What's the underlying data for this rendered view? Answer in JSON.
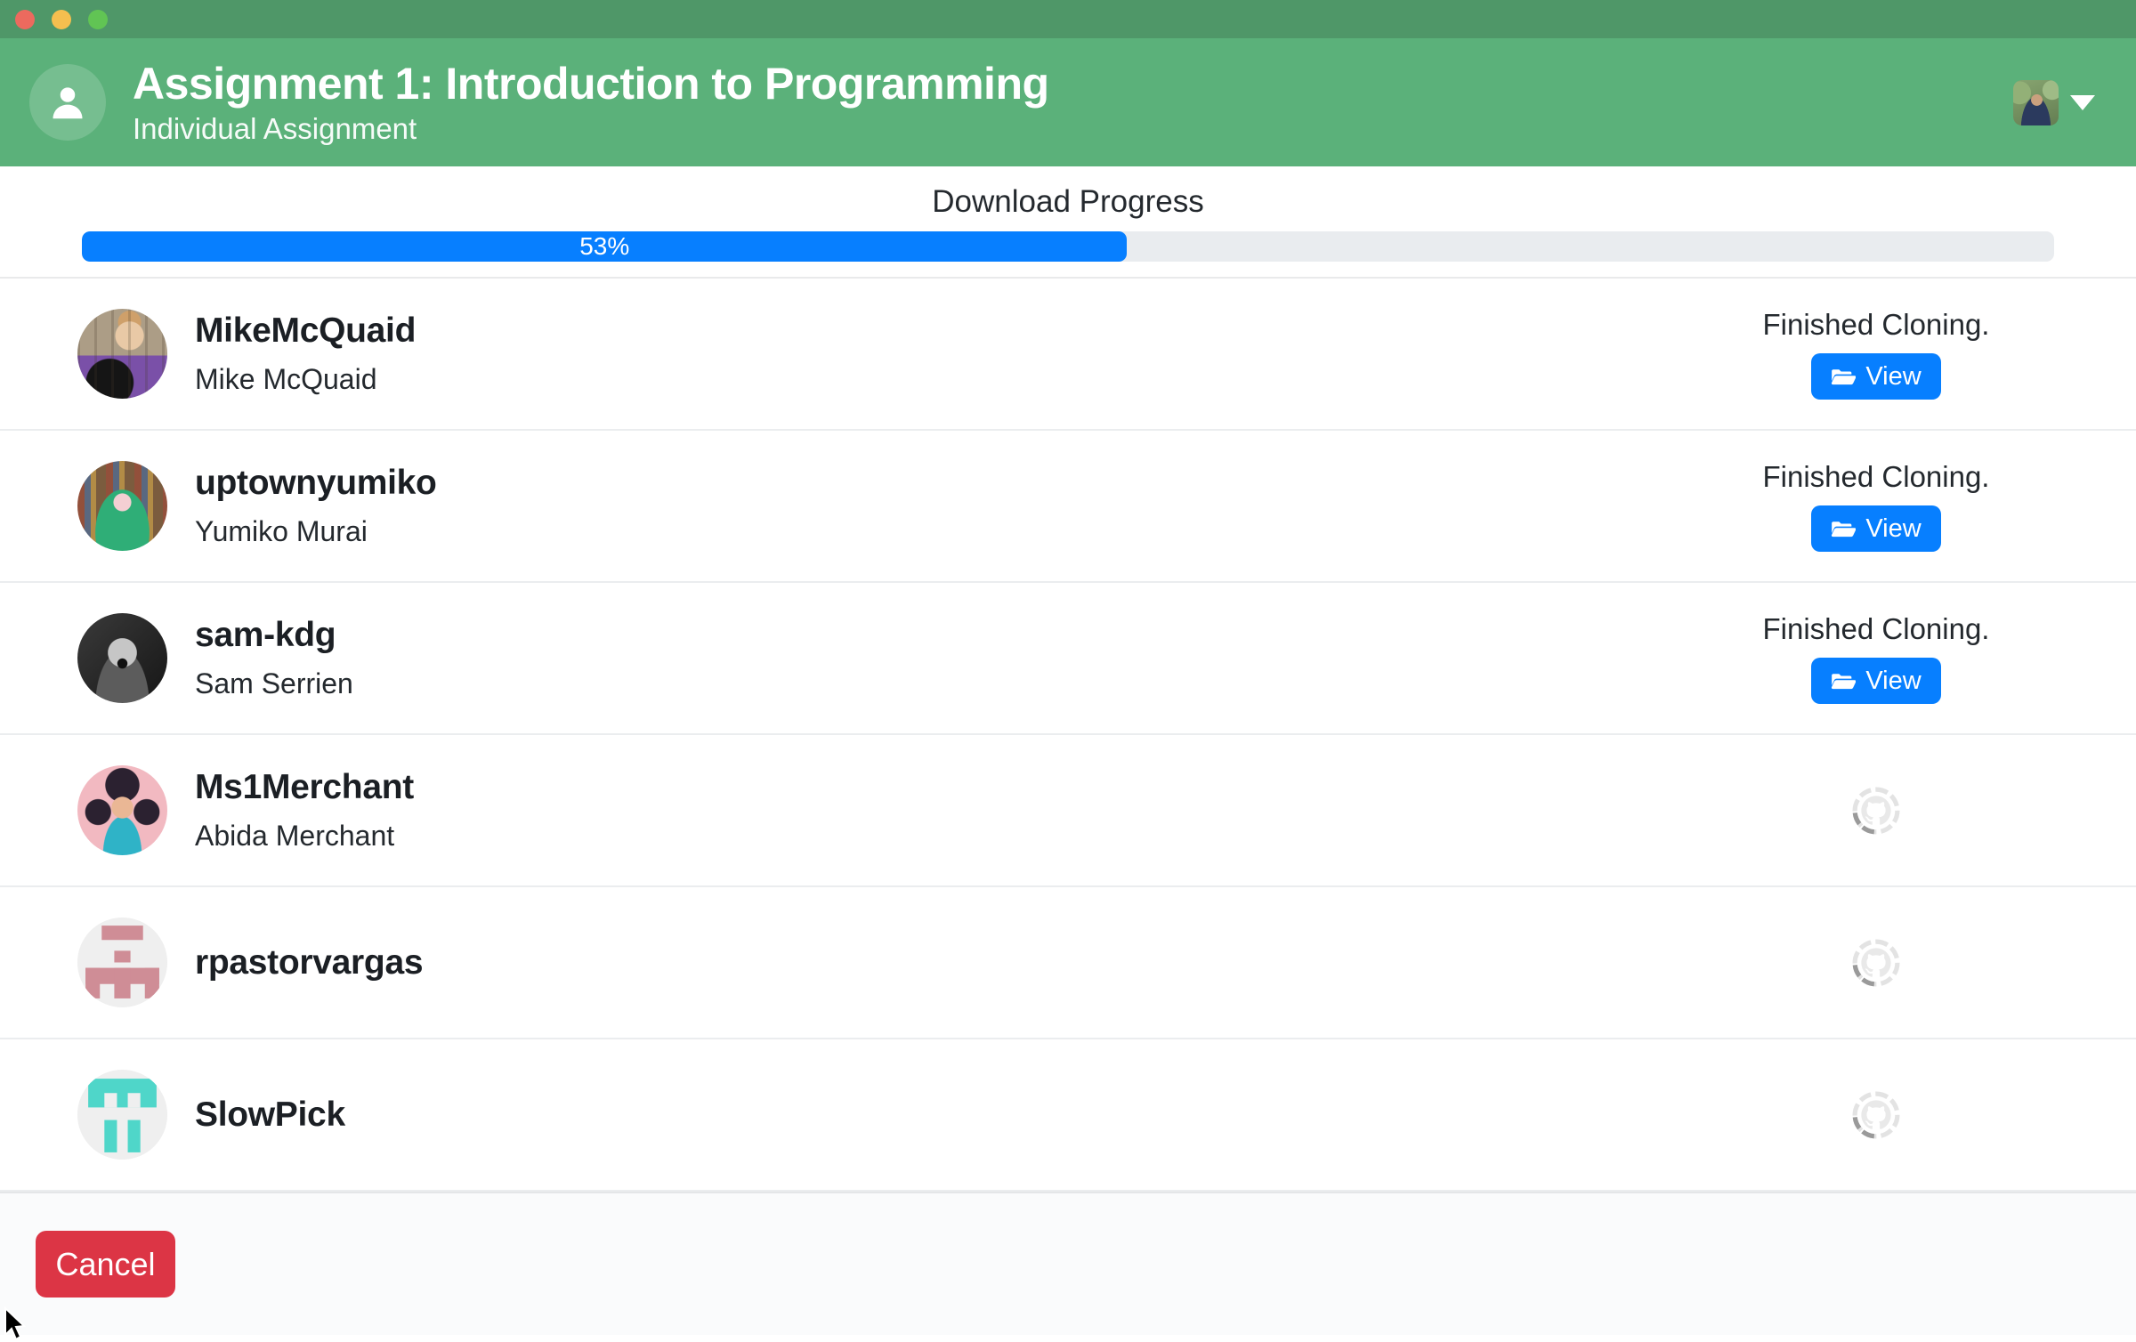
{
  "window": {
    "titlebar": {
      "close_button": "close",
      "minimize_button": "minimize",
      "zoom_button": "zoom",
      "bg_color": "#4f9768"
    }
  },
  "header": {
    "title": "Assignment 1: Introduction to Programming",
    "subtitle": "Individual Assignment",
    "bg_color": "#5bb17a",
    "left_icon": "person-icon",
    "right_icons": [
      "user-avatar",
      "caret-down-icon"
    ]
  },
  "progress": {
    "heading": "Download Progress",
    "percent": 53,
    "percent_label": "53%",
    "fill_color": "#077fff",
    "track_color": "#e9ecef"
  },
  "students": [
    {
      "username": "MikeMcQuaid",
      "name": "Mike McQuaid",
      "status": "Finished Cloning.",
      "action_label": "View",
      "avatar": "photo-mike"
    },
    {
      "username": "uptownyumiko",
      "name": "Yumiko Murai",
      "status": "Finished Cloning.",
      "action_label": "View",
      "avatar": "photo-yumiko"
    },
    {
      "username": "sam-kdg",
      "name": "Sam Serrien",
      "status": "Finished Cloning.",
      "action_label": "View",
      "avatar": "photo-sam"
    },
    {
      "username": "Ms1Merchant",
      "name": "Abida Merchant",
      "status": "cloning-in-progress",
      "action_label": "",
      "avatar": "cartoon-abida"
    },
    {
      "username": "rpastorvargas",
      "name": "",
      "status": "cloning-in-progress",
      "action_label": "",
      "avatar": "identicon-pink"
    },
    {
      "username": "SlowPick",
      "name": "",
      "status": "cloning-in-progress",
      "action_label": "",
      "avatar": "identicon-teal"
    }
  ],
  "icons": {
    "view_button_icon": "folder-open-icon",
    "loading_icon": "octocat-spinner-icon",
    "identicon_pink_color": "#cf8d96",
    "identicon_teal_color": "#4fd6c9"
  },
  "footer": {
    "cancel_label": "Cancel",
    "cancel_color": "#dc3545"
  }
}
